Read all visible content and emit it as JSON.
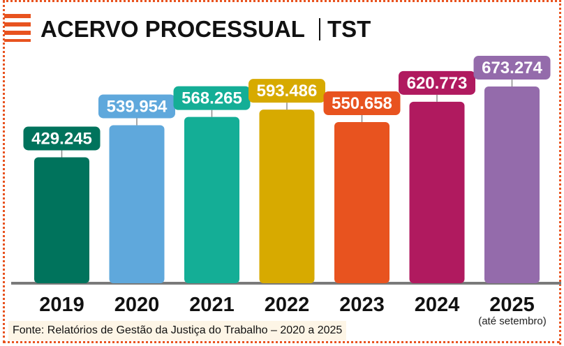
{
  "title": "ACERVO PROCESSUAL",
  "subtitle": "TST",
  "source": "Fonte: Relatórios de Gestão da Justiça do Trabalho – 2020 a 2025",
  "note": "(até setembro)",
  "colors": {
    "accent": "#e8531f",
    "bars": [
      "#00735c",
      "#5fa8dc",
      "#14ae96",
      "#d7aa00",
      "#e8531f",
      "#b01a5f",
      "#946bab"
    ],
    "axis": "#7a7a7a"
  },
  "chart_data": {
    "type": "bar",
    "title": "ACERVO PROCESSUAL | TST",
    "categories": [
      "2019",
      "2020",
      "2021",
      "2022",
      "2023",
      "2024",
      "2025"
    ],
    "values": [
      429245,
      539954,
      568265,
      593486,
      550658,
      620773,
      673274
    ],
    "value_labels": [
      "429.245",
      "539.954",
      "568.265",
      "593.486",
      "550.658",
      "620.773",
      "673.274"
    ],
    "xlabel": "",
    "ylabel": "",
    "grid": false,
    "legend": "none"
  }
}
